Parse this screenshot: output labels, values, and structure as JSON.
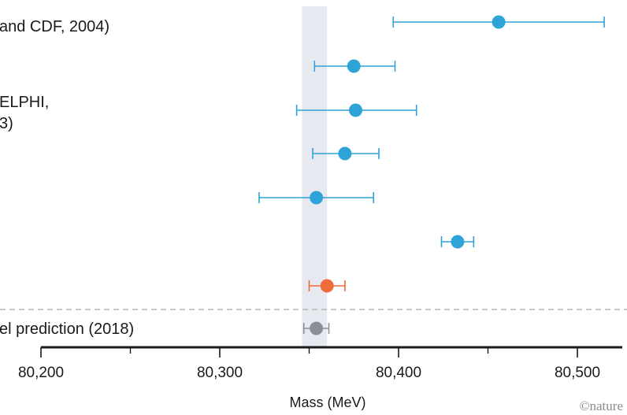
{
  "chart_data": {
    "type": "scatter",
    "xlabel": "Mass (MeV)",
    "xlim": [
      80200,
      80520
    ],
    "x_ticks": [
      80200,
      80300,
      80400,
      80500
    ],
    "x_tick_labels": [
      "80,200",
      "80,300",
      "80,400",
      "80,500"
    ],
    "x_minor_ticks": [
      80250,
      80350,
      80450
    ],
    "band": {
      "x0": 80346,
      "x1": 80360,
      "color": "#e6e9ef"
    },
    "colors": {
      "measurement": "#2ea3d8",
      "highlight": "#ef6b3a",
      "prediction": "#8a8e96",
      "separator": "#b5b5b5",
      "axis": "#1a1a1a"
    },
    "rows": [
      {
        "label_lines": [
          "and CDF, 2004)"
        ],
        "value": 80456,
        "low": 80397,
        "high": 80515,
        "kind": "measurement"
      },
      {
        "label_lines": [
          ""
        ],
        "value": 80375,
        "low": 80353,
        "high": 80398,
        "kind": "measurement"
      },
      {
        "label_lines": [
          "ELPHI,",
          "3)"
        ],
        "value": 80376,
        "low": 80343,
        "high": 80410,
        "kind": "measurement"
      },
      {
        "label_lines": [
          ""
        ],
        "value": 80370,
        "low": 80352,
        "high": 80389,
        "kind": "measurement"
      },
      {
        "label_lines": [
          ""
        ],
        "value": 80354,
        "low": 80322,
        "high": 80386,
        "kind": "measurement"
      },
      {
        "label_lines": [
          ""
        ],
        "value": 80433,
        "low": 80424,
        "high": 80442,
        "kind": "measurement"
      },
      {
        "label_lines": [
          ""
        ],
        "value": 80360,
        "low": 80350,
        "high": 80370,
        "kind": "highlight"
      },
      {
        "label_lines": [
          "el prediction (2018)"
        ],
        "value": 80354,
        "low": 80347,
        "high": 80361,
        "kind": "prediction"
      }
    ]
  },
  "credit": "©nature"
}
